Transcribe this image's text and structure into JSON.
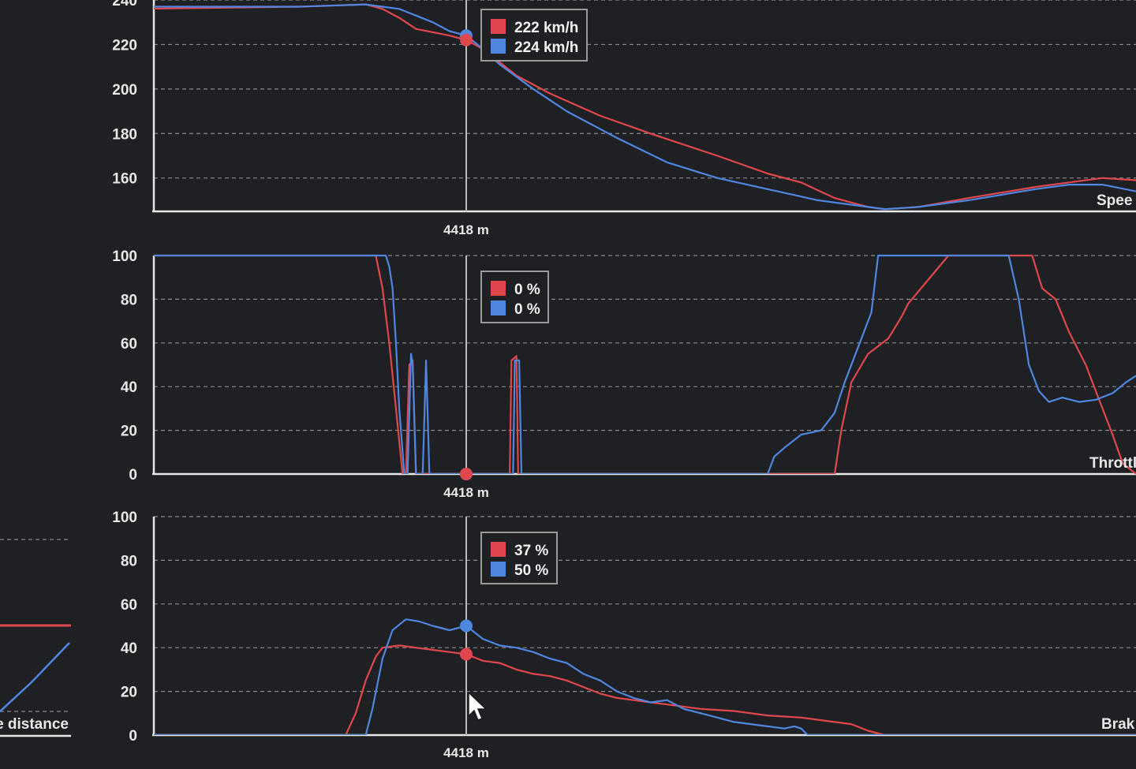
{
  "colors": {
    "lap_a": "#e0474c",
    "lap_b": "#4f86e0",
    "background": "#1f2024"
  },
  "cursor_label": "4418 m",
  "icons": {
    "pointer": "mouse-cursor-icon"
  },
  "left_panel": {
    "label": "e distance"
  },
  "chart_data": [
    {
      "type": "line",
      "channel_label": "Spee",
      "y_ticks": [
        "160",
        "180",
        "200",
        "220",
        "240"
      ],
      "ylim": [
        145,
        240
      ],
      "xlim": [
        -1000,
        2000
      ],
      "cursor_x": 0,
      "grid": true,
      "tooltip": [
        "222 km/h",
        "224 km/h"
      ],
      "cursor_values": [
        222,
        224
      ],
      "series": [
        {
          "values": [
            [
              -1000,
              236
            ],
            [
              -500,
              237
            ],
            [
              -300,
              238
            ],
            [
              -250,
              236
            ],
            [
              -200,
              232
            ],
            [
              -150,
              227
            ],
            [
              -50,
              224
            ],
            [
              0,
              222
            ],
            [
              50,
              218
            ],
            [
              100,
              212
            ],
            [
              150,
              206
            ],
            [
              250,
              198
            ],
            [
              400,
              188
            ],
            [
              550,
              180
            ],
            [
              750,
              170
            ],
            [
              900,
              162
            ],
            [
              1000,
              158
            ],
            [
              1100,
              151
            ],
            [
              1200,
              147
            ],
            [
              1250,
              146
            ],
            [
              1350,
              147
            ],
            [
              1500,
              151
            ],
            [
              1700,
              156
            ],
            [
              1800,
              158
            ],
            [
              1900,
              160
            ],
            [
              2000,
              159
            ]
          ]
        },
        {
          "values": [
            [
              -1000,
              237
            ],
            [
              -500,
              237
            ],
            [
              -300,
              238
            ],
            [
              -250,
              237
            ],
            [
              -200,
              236
            ],
            [
              -100,
              230
            ],
            [
              -50,
              226
            ],
            [
              0,
              224
            ],
            [
              50,
              218
            ],
            [
              100,
              211
            ],
            [
              200,
              200
            ],
            [
              300,
              190
            ],
            [
              450,
              178
            ],
            [
              600,
              167
            ],
            [
              750,
              160
            ],
            [
              900,
              155
            ],
            [
              1050,
              150
            ],
            [
              1200,
              147
            ],
            [
              1250,
              146
            ],
            [
              1350,
              147
            ],
            [
              1500,
              150
            ],
            [
              1700,
              155
            ],
            [
              1800,
              157
            ],
            [
              1900,
              157
            ],
            [
              2000,
              154
            ]
          ]
        }
      ]
    },
    {
      "type": "line",
      "channel_label": "Throttl",
      "y_ticks": [
        "0",
        "20",
        "40",
        "60",
        "80",
        "100"
      ],
      "ylim": [
        0,
        100
      ],
      "xlim": [
        -1000,
        2000
      ],
      "cursor_x": 0,
      "grid": true,
      "tooltip": [
        "0 %",
        "0 %"
      ],
      "cursor_values": [
        0,
        0
      ],
      "series": [
        {
          "values": [
            [
              -1000,
              100
            ],
            [
              -270,
              100
            ],
            [
              -250,
              85
            ],
            [
              -230,
              60
            ],
            [
              -210,
              30
            ],
            [
              -190,
              0
            ],
            [
              -180,
              0
            ],
            [
              -170,
              50
            ],
            [
              -160,
              52
            ],
            [
              -150,
              0
            ],
            [
              -130,
              0
            ],
            [
              -125,
              0
            ],
            [
              -110,
              0
            ],
            [
              0,
              0
            ],
            [
              130,
              0
            ],
            [
              135,
              52
            ],
            [
              150,
              54
            ],
            [
              155,
              0
            ],
            [
              1000,
              0
            ],
            [
              1100,
              0
            ],
            [
              1120,
              20
            ],
            [
              1150,
              42
            ],
            [
              1200,
              55
            ],
            [
              1260,
              62
            ],
            [
              1300,
              72
            ],
            [
              1320,
              78
            ],
            [
              1440,
              100
            ],
            [
              1600,
              100
            ],
            [
              1690,
              100
            ],
            [
              1720,
              85
            ],
            [
              1760,
              80
            ],
            [
              1800,
              65
            ],
            [
              1850,
              50
            ],
            [
              1900,
              30
            ],
            [
              1930,
              18
            ],
            [
              1960,
              5
            ],
            [
              2000,
              0
            ]
          ]
        },
        {
          "values": [
            [
              -1000,
              100
            ],
            [
              -240,
              100
            ],
            [
              -230,
              95
            ],
            [
              -220,
              85
            ],
            [
              -210,
              60
            ],
            [
              -200,
              30
            ],
            [
              -185,
              0
            ],
            [
              -175,
              0
            ],
            [
              -165,
              55
            ],
            [
              -160,
              50
            ],
            [
              -150,
              0
            ],
            [
              -130,
              0
            ],
            [
              -120,
              52
            ],
            [
              -110,
              0
            ],
            [
              0,
              0
            ],
            [
              140,
              0
            ],
            [
              145,
              52
            ],
            [
              158,
              52
            ],
            [
              165,
              0
            ],
            [
              900,
              0
            ],
            [
              920,
              8
            ],
            [
              950,
              12
            ],
            [
              1000,
              18
            ],
            [
              1060,
              20
            ],
            [
              1100,
              28
            ],
            [
              1130,
              42
            ],
            [
              1180,
              62
            ],
            [
              1210,
              74
            ],
            [
              1230,
              100
            ],
            [
              1300,
              100
            ],
            [
              1330,
              100
            ],
            [
              1360,
              100
            ],
            [
              1550,
              100
            ],
            [
              1580,
              100
            ],
            [
              1620,
              100
            ],
            [
              1650,
              80
            ],
            [
              1680,
              50
            ],
            [
              1710,
              38
            ],
            [
              1740,
              33
            ],
            [
              1780,
              35
            ],
            [
              1830,
              33
            ],
            [
              1880,
              34
            ],
            [
              1930,
              37
            ],
            [
              1970,
              42
            ],
            [
              2000,
              45
            ]
          ]
        }
      ]
    },
    {
      "type": "line",
      "channel_label": "Brak",
      "y_ticks": [
        "0",
        "20",
        "40",
        "60",
        "80",
        "100"
      ],
      "ylim": [
        0,
        100
      ],
      "xlim": [
        -1000,
        2000
      ],
      "cursor_x": 0,
      "grid": true,
      "tooltip": [
        "37 %",
        "50 %"
      ],
      "cursor_values": [
        37,
        50
      ],
      "series": [
        {
          "values": [
            [
              -1000,
              0
            ],
            [
              -360,
              0
            ],
            [
              -330,
              10
            ],
            [
              -300,
              25
            ],
            [
              -270,
              36
            ],
            [
              -250,
              40
            ],
            [
              -200,
              41
            ],
            [
              -150,
              40
            ],
            [
              -100,
              39
            ],
            [
              -50,
              38
            ],
            [
              0,
              37
            ],
            [
              50,
              34
            ],
            [
              100,
              33
            ],
            [
              150,
              30
            ],
            [
              200,
              28
            ],
            [
              250,
              27
            ],
            [
              300,
              25
            ],
            [
              350,
              22
            ],
            [
              400,
              19
            ],
            [
              450,
              17
            ],
            [
              500,
              16
            ],
            [
              550,
              15
            ],
            [
              600,
              14
            ],
            [
              650,
              13
            ],
            [
              700,
              12
            ],
            [
              800,
              11
            ],
            [
              900,
              9
            ],
            [
              1000,
              8
            ],
            [
              1100,
              6
            ],
            [
              1150,
              5
            ],
            [
              1200,
              2
            ],
            [
              1250,
              0
            ],
            [
              2000,
              0
            ]
          ]
        },
        {
          "values": [
            [
              -1000,
              0
            ],
            [
              -300,
              0
            ],
            [
              -280,
              12
            ],
            [
              -250,
              35
            ],
            [
              -220,
              48
            ],
            [
              -180,
              53
            ],
            [
              -140,
              52
            ],
            [
              -100,
              50
            ],
            [
              -50,
              48
            ],
            [
              0,
              50
            ],
            [
              50,
              44
            ],
            [
              100,
              41
            ],
            [
              150,
              40
            ],
            [
              200,
              38
            ],
            [
              250,
              35
            ],
            [
              300,
              33
            ],
            [
              350,
              28
            ],
            [
              400,
              25
            ],
            [
              450,
              20
            ],
            [
              500,
              17
            ],
            [
              550,
              15
            ],
            [
              600,
              16
            ],
            [
              650,
              12
            ],
            [
              700,
              10
            ],
            [
              750,
              8
            ],
            [
              800,
              6
            ],
            [
              850,
              5
            ],
            [
              900,
              4
            ],
            [
              950,
              3
            ],
            [
              980,
              4
            ],
            [
              1000,
              3
            ],
            [
              1020,
              0
            ],
            [
              2000,
              0
            ]
          ]
        }
      ]
    }
  ]
}
